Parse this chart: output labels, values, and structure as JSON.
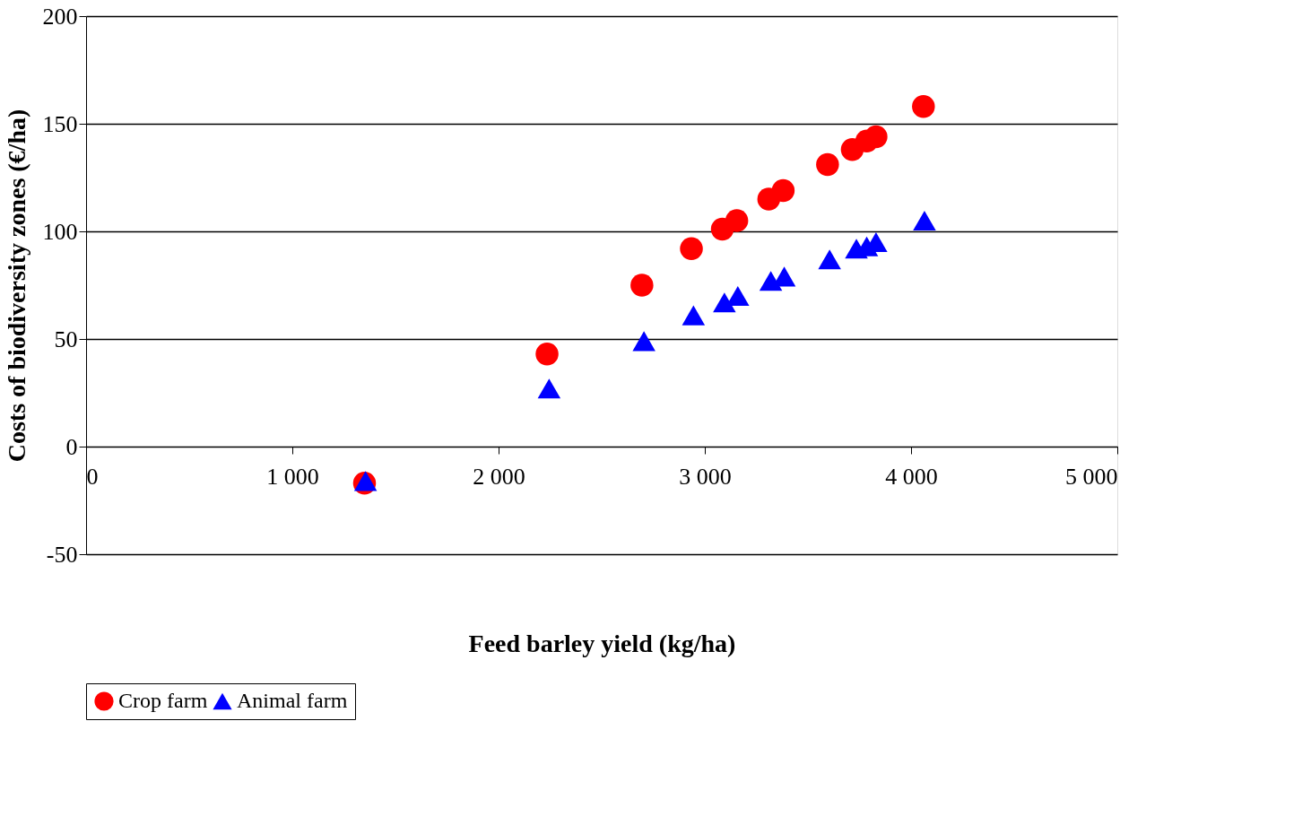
{
  "chart_data": {
    "type": "scatter",
    "xlabel": "Feed barley yield (kg/ha)",
    "ylabel": "Costs of biodiversity zones (€/ha)",
    "xlim": [
      0,
      5000
    ],
    "ylim": [
      -50,
      200
    ],
    "xticks": [
      0,
      {
        "value": 1000,
        "label": "1 000"
      },
      {
        "value": 2000,
        "label": "2 000"
      },
      {
        "value": 3000,
        "label": "3 000"
      },
      {
        "value": 4000,
        "label": "4 000"
      },
      {
        "value": 5000,
        "label": "5 000"
      }
    ],
    "yticks": [
      -50,
      0,
      50,
      100,
      150,
      200
    ],
    "grid": "y",
    "legend": "bottom",
    "series": [
      {
        "name": "Crop farm",
        "color": "#ff0000",
        "marker": "circle",
        "x": [
          1350,
          2235,
          2695,
          2935,
          3085,
          3155,
          3310,
          3380,
          3595,
          3715,
          3785,
          3830,
          4060
        ],
        "values": [
          -17,
          43,
          75,
          92,
          101,
          105,
          115,
          119,
          131,
          138,
          142,
          144,
          158
        ]
      },
      {
        "name": "Animal farm",
        "color": "#0000ff",
        "marker": "triangle",
        "x": [
          1355,
          2245,
          2705,
          2945,
          3095,
          3160,
          3320,
          3385,
          3605,
          3735,
          3785,
          3830,
          4065
        ],
        "values": [
          -16,
          27,
          49,
          61,
          67,
          70,
          77,
          79,
          87,
          92,
          93,
          95,
          105
        ]
      }
    ]
  }
}
